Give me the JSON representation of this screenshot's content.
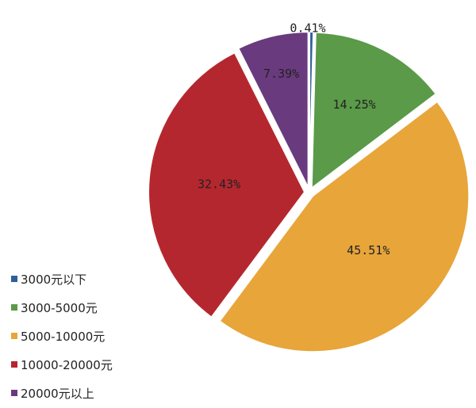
{
  "chart_data": {
    "type": "pie",
    "categories": [
      "3000元以下",
      "3000-5000元",
      "5000-10000元",
      "10000-20000元",
      "20000元以上"
    ],
    "values": [
      0.41,
      14.25,
      45.51,
      32.43,
      7.39
    ],
    "labels": [
      "0.41%",
      "14.25%",
      "45.51%",
      "32.43%",
      "7.39%"
    ],
    "colors": [
      "#2e5f9a",
      "#5a9a48",
      "#e8a53a",
      "#b5272e",
      "#6a3a7e"
    ],
    "title": "",
    "legend_position": "left"
  }
}
